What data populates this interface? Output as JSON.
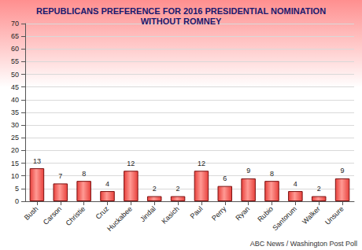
{
  "chart_data": {
    "type": "bar",
    "title": "REPUBLICANS PREFERENCE FOR 2016 PRESIDENTIAL NOMINATION\nWITHOUT ROMNEY",
    "categories": [
      "Bush",
      "Carson",
      "Christie",
      "Cruz",
      "Huckabee",
      "Jindal",
      "Kasich",
      "Paul",
      "Perry",
      "Ryan",
      "Rubio",
      "Santorum",
      "Walker",
      "Unsure"
    ],
    "values": [
      13,
      7,
      8,
      4,
      12,
      2,
      2,
      12,
      6,
      9,
      8,
      4,
      2,
      9
    ],
    "color": "#e8413c",
    "ylim": [
      0,
      70
    ],
    "yticks": [
      0,
      5,
      10,
      15,
      20,
      25,
      30,
      35,
      40,
      45,
      50,
      55,
      60,
      65,
      70
    ],
    "grid": true,
    "data_labels": true,
    "annotations": [
      "ABC News / Washington Post Poll"
    ]
  }
}
